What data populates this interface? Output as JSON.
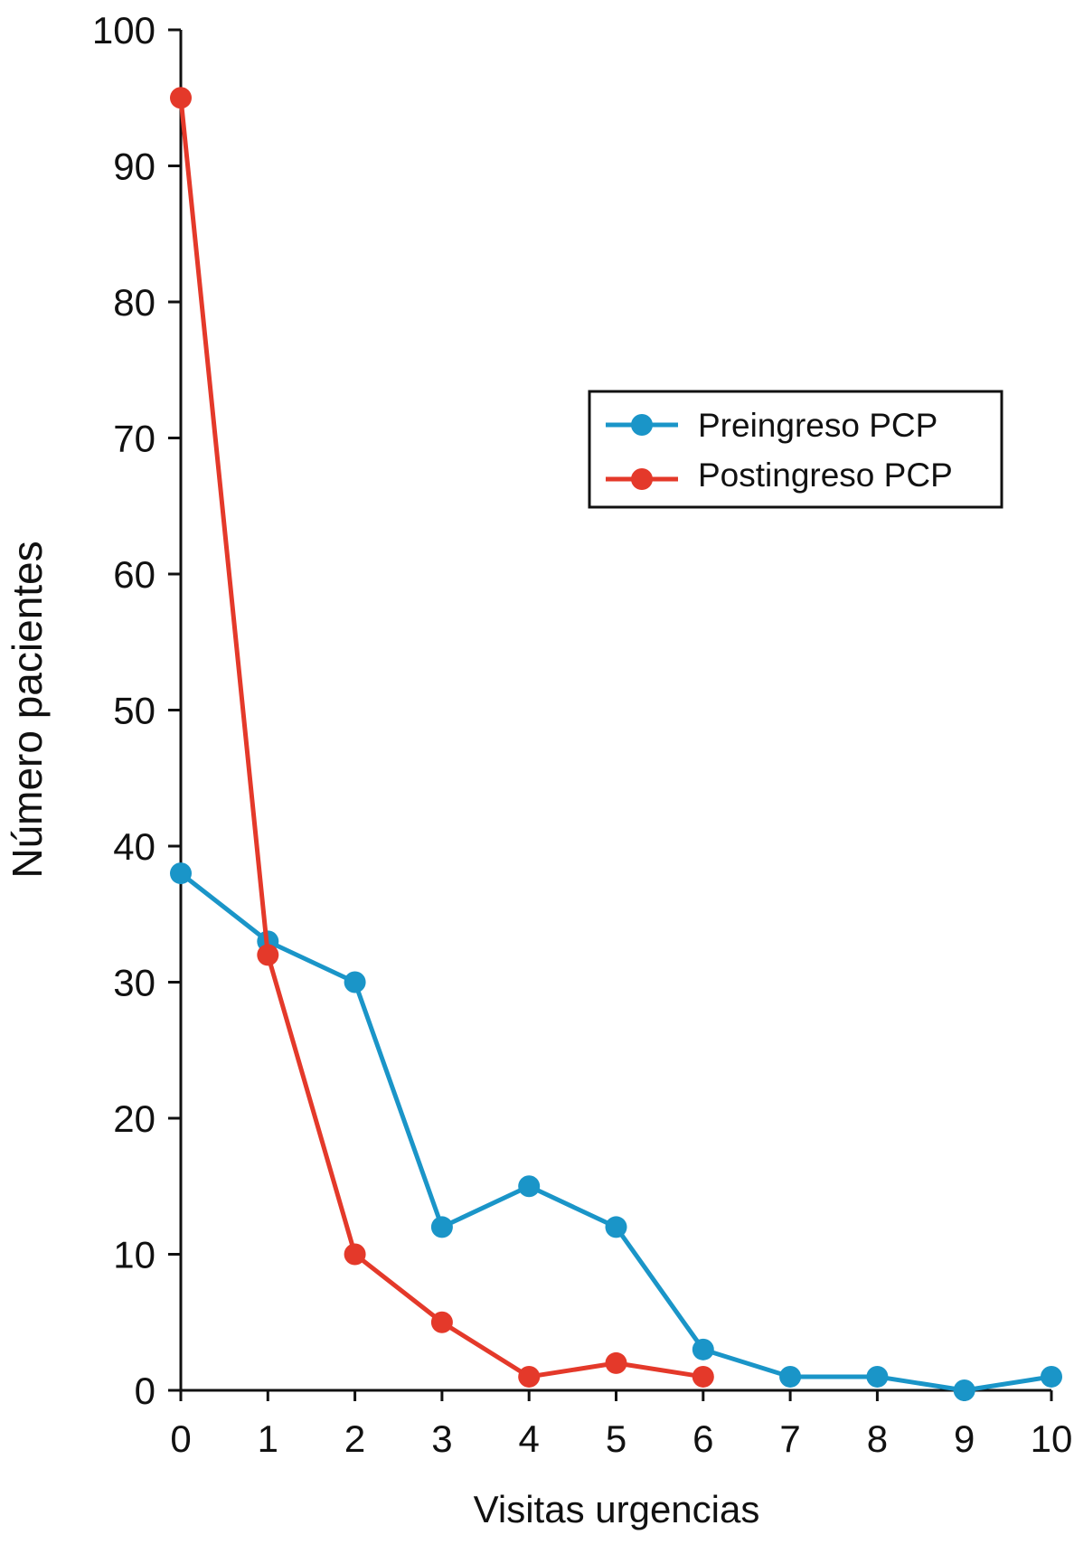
{
  "chart_data": {
    "type": "line",
    "xlabel": "Visitas urgencias",
    "ylabel": "Número pacientes",
    "xlim": [
      0,
      10
    ],
    "ylim": [
      0,
      100
    ],
    "xticks": [
      "0",
      "1",
      "2",
      "3",
      "4",
      "5",
      "6",
      "7",
      "8",
      "9",
      "10"
    ],
    "yticks": [
      "0",
      "10",
      "20",
      "30",
      "40",
      "50",
      "60",
      "70",
      "80",
      "90",
      "100"
    ],
    "grid": false,
    "legend": "upper-right",
    "series": [
      {
        "name": "Preingreso PCP",
        "color": "#1a95c8",
        "x": [
          0,
          1,
          2,
          3,
          4,
          5,
          6,
          7,
          8,
          9,
          10
        ],
        "values": [
          38,
          33,
          30,
          12,
          15,
          12,
          3,
          1,
          1,
          0,
          1
        ]
      },
      {
        "name": "Postingreso PCP",
        "color": "#e4392a",
        "x": [
          0,
          1,
          2,
          3,
          4,
          5,
          6
        ],
        "values": [
          95,
          32,
          10,
          5,
          1,
          2,
          1
        ]
      }
    ]
  }
}
